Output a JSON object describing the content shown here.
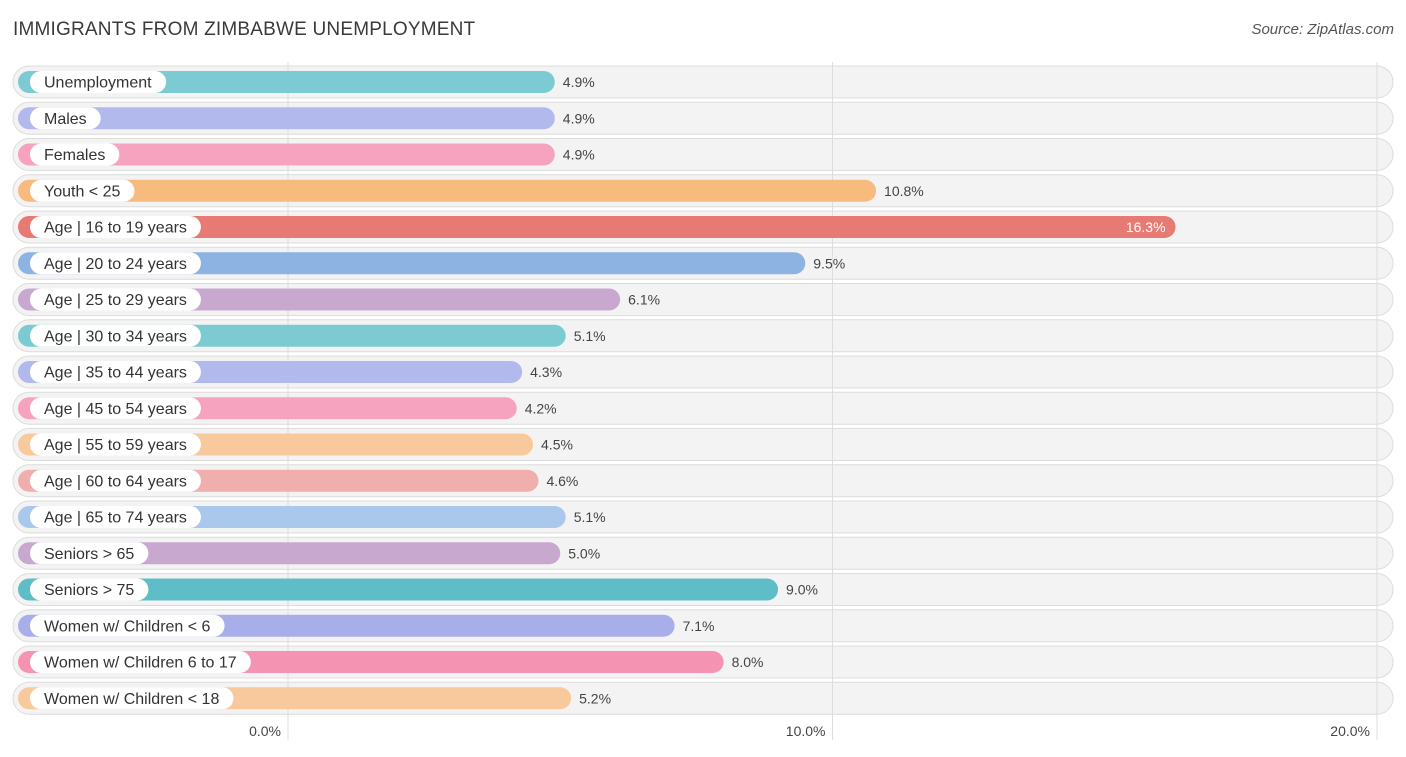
{
  "header": {
    "title": "IMMIGRANTS FROM ZIMBABWE UNEMPLOYMENT",
    "source": "Source: ZipAtlas.com"
  },
  "chart_data": {
    "type": "bar",
    "orientation": "horizontal",
    "title": "IMMIGRANTS FROM ZIMBABWE UNEMPLOYMENT",
    "xlabel": "",
    "ylabel": "",
    "xlim": [
      0,
      20
    ],
    "ticks": [
      {
        "value": 0,
        "label": "0.0%"
      },
      {
        "value": 10,
        "label": "10.0%"
      },
      {
        "value": 20,
        "label": "20.0%"
      }
    ],
    "categories": [
      "Unemployment",
      "Males",
      "Females",
      "Youth < 25",
      "Age | 16 to 19 years",
      "Age | 20 to 24 years",
      "Age | 25 to 29 years",
      "Age | 30 to 34 years",
      "Age | 35 to 44 years",
      "Age | 45 to 54 years",
      "Age | 55 to 59 years",
      "Age | 60 to 64 years",
      "Age | 65 to 74 years",
      "Seniors > 65",
      "Seniors > 75",
      "Women w/ Children < 6",
      "Women w/ Children 6 to 17",
      "Women w/ Children < 18"
    ],
    "values": [
      4.9,
      4.9,
      4.9,
      10.8,
      16.3,
      9.5,
      6.1,
      5.1,
      4.3,
      4.2,
      4.5,
      4.6,
      5.1,
      5.0,
      9.0,
      7.1,
      8.0,
      5.2
    ],
    "value_labels": [
      "4.9%",
      "4.9%",
      "4.9%",
      "10.8%",
      "16.3%",
      "9.5%",
      "6.1%",
      "5.1%",
      "4.3%",
      "4.2%",
      "4.5%",
      "4.6%",
      "5.1%",
      "5.0%",
      "9.0%",
      "7.1%",
      "8.0%",
      "5.2%"
    ],
    "colors": [
      "#7ccbd3",
      "#b2b9ec",
      "#f5a3bf",
      "#f8bb7e",
      "#e87a74",
      "#8db3e2",
      "#c9a8d0",
      "#7ccbd3",
      "#b2b9ec",
      "#f5a3bf",
      "#f8c99c",
      "#f0aeac",
      "#a9c8ec",
      "#c9a8d0",
      "#5fbdc8",
      "#a8aeea",
      "#f593b3",
      "#f8c99c"
    ]
  }
}
